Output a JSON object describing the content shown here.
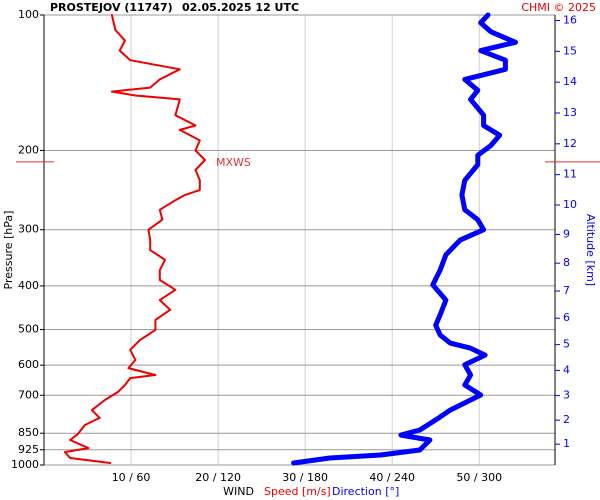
{
  "chart_data": {
    "type": "profile",
    "title": "PROSTEJOV (11747)",
    "subtitle": "02.05.2025 12 UTC",
    "credit": "CHMI © 2025",
    "ylabel": "Pressure [hPa]",
    "y2label": "Altitude [km]",
    "legend_title": "WIND",
    "ylog": true,
    "ylim": [
      1000,
      100
    ],
    "yticks": [
      100,
      200,
      300,
      400,
      500,
      600,
      700,
      850,
      925,
      1000
    ],
    "xlim": [
      0,
      58.7
    ],
    "x2lim": [
      0,
      352.2
    ],
    "xticks": [
      {
        "value": 10,
        "label": "10 / 60"
      },
      {
        "value": 20,
        "label": "20 / 120"
      },
      {
        "value": 30,
        "label": "30 / 180"
      },
      {
        "value": 40,
        "label": "40 / 240"
      },
      {
        "value": 50,
        "label": "50 / 300"
      }
    ],
    "y2ticks": [
      1,
      2,
      3,
      4,
      5,
      6,
      7,
      8,
      9,
      10,
      11,
      12,
      13,
      14,
      15,
      16
    ],
    "y2color": "#0000ff",
    "grid": true,
    "annotation": {
      "text": "MXWS",
      "pressure": 212,
      "color": "#e03030"
    },
    "series": [
      {
        "name": "Speed [m/s]",
        "color": "#ee0000",
        "pressure": [
          990,
          965,
          936,
          917,
          880,
          853,
          815,
          786,
          755,
          717,
          688,
          664,
          641,
          631,
          609,
          584,
          555,
          528,
          501,
          476,
          452,
          430,
          408,
          388,
          369,
          350,
          333,
          316,
          300,
          285,
          271,
          258,
          251,
          245,
          233,
          221,
          210,
          200,
          190,
          180,
          176,
          167,
          154,
          151,
          148,
          145,
          139,
          132,
          126,
          120,
          114,
          108,
          100
        ],
        "values": [
          7.6,
          3.0,
          2.4,
          5.1,
          3.0,
          3.9,
          4.7,
          6.4,
          5.5,
          7.0,
          8.5,
          9.3,
          9.9,
          12.8,
          9.7,
          10.5,
          9.9,
          11.0,
          12.8,
          12.8,
          14.5,
          13.3,
          15.1,
          13.3,
          13.3,
          13.9,
          12.2,
          12.2,
          12.0,
          13.6,
          13.3,
          15.1,
          16.2,
          17.9,
          17.9,
          17.4,
          18.5,
          17.4,
          17.9,
          15.6,
          17.4,
          15.1,
          15.6,
          10.5,
          7.8,
          12.2,
          13.3,
          15.6,
          9.9,
          8.7,
          9.3,
          8.2,
          7.8
        ]
      },
      {
        "name": "Direction [°]",
        "color": "#0000ff",
        "axis": "x2",
        "pressure": [
          990,
          965,
          950,
          926,
          880,
          858,
          836,
          794,
          755,
          717,
          699,
          664,
          631,
          599,
          570,
          550,
          536,
          514,
          489,
          464,
          430,
          398,
          369,
          341,
          316,
          300,
          285,
          271,
          251,
          233,
          215,
          205,
          195,
          185,
          176,
          167,
          154,
          147,
          139,
          132,
          126,
          120,
          115,
          109,
          104,
          100
        ],
        "values": [
          172,
          197,
          232,
          259,
          266,
          246,
          259,
          270,
          280,
          294,
          301,
          290,
          294,
          290,
          304,
          294,
          280,
          273,
          270,
          273,
          277,
          268,
          273,
          277,
          287,
          303,
          299,
          290,
          288,
          290,
          299,
          299,
          308,
          314,
          303,
          303,
          294,
          299,
          290,
          318,
          318,
          301,
          325,
          308,
          301,
          306
        ]
      }
    ]
  }
}
